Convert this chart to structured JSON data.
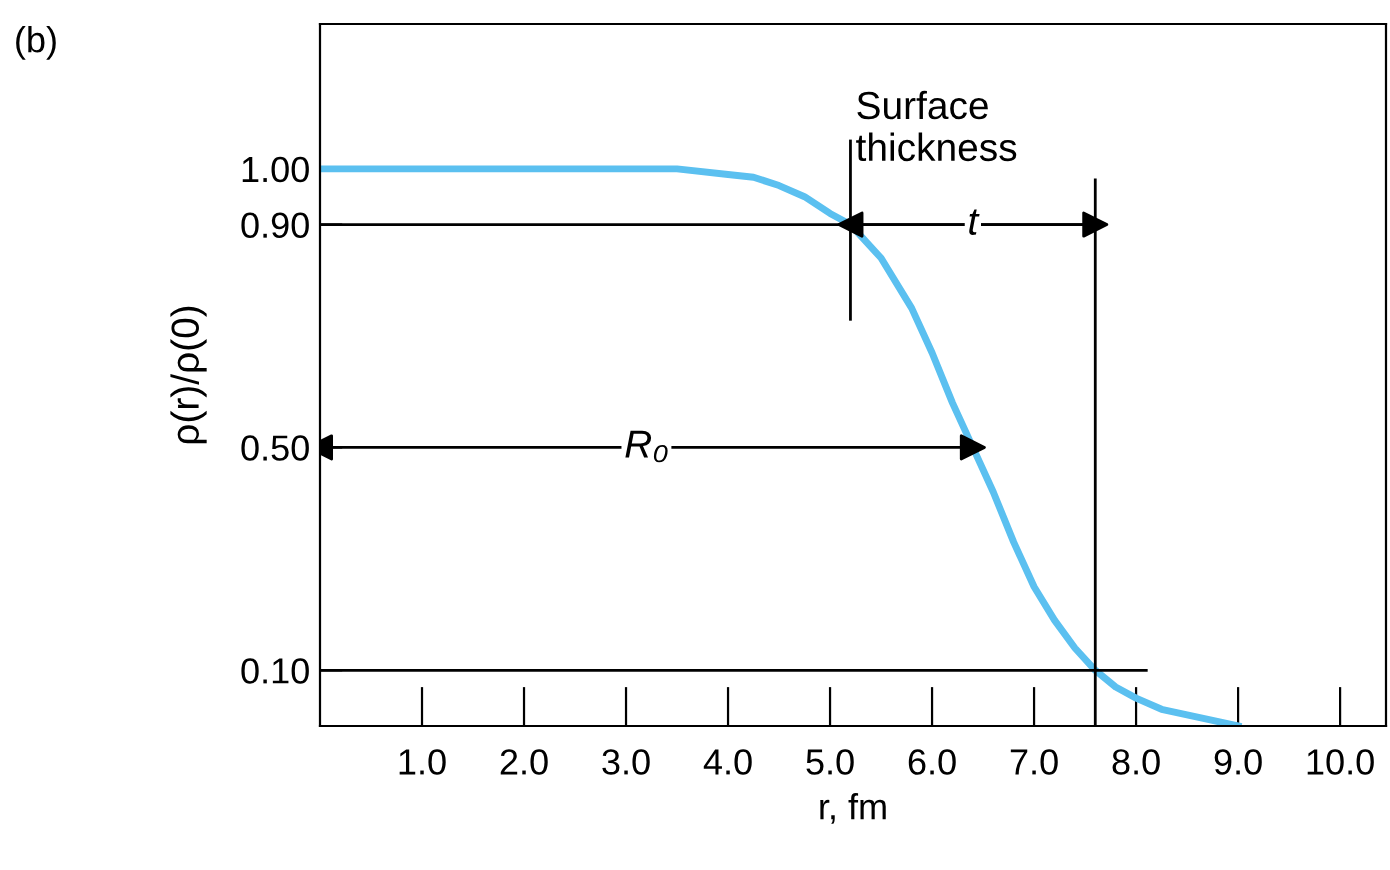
{
  "chart_data": {
    "type": "line",
    "xlabel": "r, fm",
    "ylabel": "ρ(r)/ρ(0)",
    "xlim": [
      0,
      10.45
    ],
    "ylim": [
      0,
      1.26
    ],
    "xticks": [
      {
        "value": 1,
        "label": "1.0"
      },
      {
        "value": 2,
        "label": "2.0"
      },
      {
        "value": 3,
        "label": "3.0"
      },
      {
        "value": 4,
        "label": "4.0"
      },
      {
        "value": 5,
        "label": "5.0"
      },
      {
        "value": 6,
        "label": "6.0"
      },
      {
        "value": 7,
        "label": "7.0"
      },
      {
        "value": 8,
        "label": "8.0"
      },
      {
        "value": 9,
        "label": "9.0"
      },
      {
        "value": 10,
        "label": "10.0"
      }
    ],
    "yticks": [
      {
        "value": 0.1,
        "label": "0.10"
      },
      {
        "value": 0.5,
        "label": "0.50"
      },
      {
        "value": 0.9,
        "label": "0.90"
      },
      {
        "value": 1.0,
        "label": "1.00"
      }
    ],
    "grid": false,
    "legend": false,
    "series": [
      {
        "color": "#5bc0f0",
        "x": [
          0,
          1,
          2,
          3,
          3.5,
          4,
          4.25,
          4.5,
          4.75,
          5,
          5.2,
          5.5,
          5.8,
          6,
          6.2,
          6.4,
          6.6,
          6.8,
          7,
          7.2,
          7.4,
          7.6,
          7.8,
          8,
          8.25,
          8.5,
          8.75,
          9
        ],
        "values": [
          1,
          1,
          1,
          1,
          1,
          0.99,
          0.985,
          0.97,
          0.95,
          0.92,
          0.9,
          0.84,
          0.75,
          0.67,
          0.58,
          0.5,
          0.42,
          0.33,
          0.25,
          0.19,
          0.14,
          0.1,
          0.07,
          0.05,
          0.03,
          0.02,
          0.01,
          0.0
        ]
      },
      {
        "color": "#000000",
        "x": [
          0,
          7.6
        ],
        "values": [
          0.9,
          0.9
        ]
      },
      {
        "color": "#000000",
        "x": [
          0,
          8.1
        ],
        "values": [
          0.1,
          0.1
        ]
      },
      {
        "color": "#000000",
        "x": [
          5.2,
          5.2
        ],
        "values": [
          0.73,
          1.05
        ]
      },
      {
        "color": "#000000",
        "x": [
          7.6,
          7.6
        ],
        "values": [
          0,
          0.98
        ]
      },
      {
        "color": "#000000",
        "marker": "triangle",
        "x": [
          0,
          6.4
        ],
        "values": [
          0.5,
          0.5
        ]
      },
      {
        "color": "#000000",
        "marker": "triangle",
        "x": [
          5.2,
          7.6
        ],
        "values": [
          0.9,
          0.9
        ]
      }
    ],
    "annotations": [
      "(b)",
      {
        "text": "R₀",
        "x": 3.2,
        "y": 0.5
      },
      {
        "text": "t",
        "x": 6.4,
        "y": 0.9
      },
      {
        "text": "Surface\nthickness",
        "x": 5.25,
        "y": 1.0
      }
    ]
  }
}
